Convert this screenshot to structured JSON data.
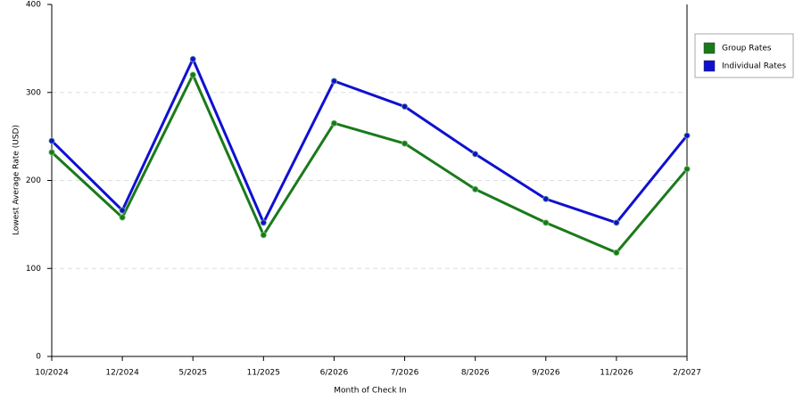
{
  "chart_data": {
    "type": "line",
    "x_label": "Month of Check In",
    "y_label": "Lowest Average Rate (USD)",
    "categories": [
      "10/2024",
      "12/2024",
      "5/2025",
      "11/2025",
      "6/2026",
      "7/2026",
      "8/2026",
      "9/2026",
      "11/2026",
      "2/2027"
    ],
    "series": [
      {
        "name": "Group Rates",
        "color": "#1a7a1a",
        "values": [
          232,
          158,
          320,
          138,
          265,
          242,
          190,
          152,
          118,
          213
        ]
      },
      {
        "name": "Individual Rates",
        "color": "#1010d0",
        "values": [
          245,
          166,
          338,
          152,
          313,
          284,
          230,
          179,
          152,
          251
        ]
      }
    ],
    "ylim": [
      0,
      400
    ],
    "yticks": [
      0,
      100,
      200,
      300,
      400
    ],
    "grid": true,
    "legend": "right"
  }
}
